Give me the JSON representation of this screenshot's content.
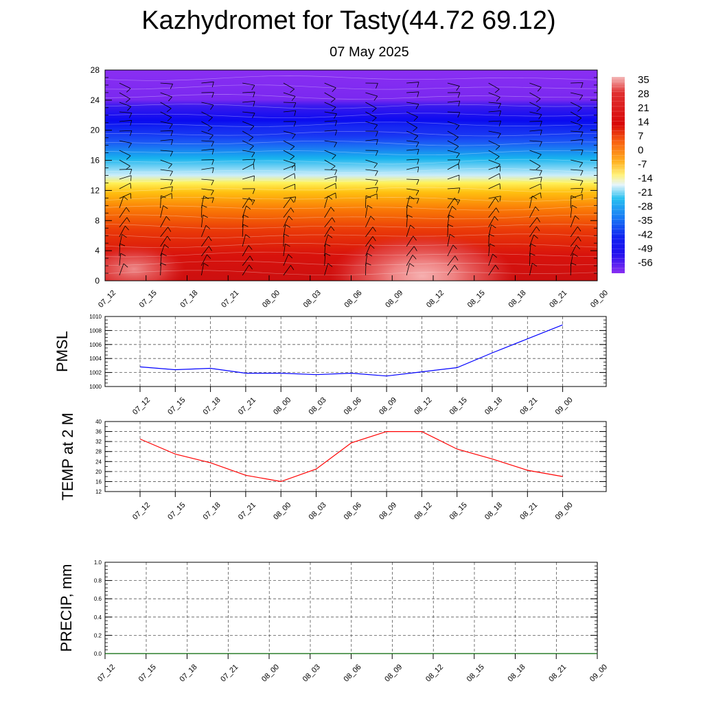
{
  "title": "Kazhydromet for Tasty(44.72 69.12)",
  "subtitle": "07 May 2025",
  "time_labels": [
    "07_12",
    "07_15",
    "07_18",
    "07_21",
    "08_00",
    "08_03",
    "08_06",
    "08_09",
    "08_12",
    "08_15",
    "08_18",
    "08_21",
    "09_00"
  ],
  "colorbar_labels": [
    "35",
    "28",
    "21",
    "14",
    "7",
    "0",
    "-7",
    "-14",
    "-21",
    "-28",
    "-35",
    "-42",
    "-49",
    "-56"
  ],
  "colors": {
    "pmsl_line": "#0000ff",
    "temp_line": "#ff0000",
    "precip_line": "#006400",
    "grid": "#555555"
  },
  "chart_data": [
    {
      "type": "heatmap",
      "title": "Kazhydromet for Tasty(44.72 69.12)",
      "subtitle": "07 May 2025",
      "x": [
        "07_12",
        "07_15",
        "07_18",
        "07_21",
        "08_00",
        "08_03",
        "08_06",
        "08_09",
        "08_12",
        "08_15",
        "08_18",
        "08_21",
        "09_00"
      ],
      "ylim": [
        0,
        28
      ],
      "y_ticks": [
        0,
        4,
        8,
        12,
        16,
        20,
        24,
        28
      ],
      "colorbar": [
        35,
        28,
        21,
        14,
        7,
        0,
        -7,
        -14,
        -21,
        -28,
        -35,
        -42,
        -49,
        -56
      ],
      "overlay": "wind barbs"
    },
    {
      "type": "line",
      "ylabel": "PMSL",
      "ylim": [
        1000,
        1010
      ],
      "y_ticks": [
        1000,
        1002,
        1004,
        1006,
        1008,
        1010
      ],
      "x": [
        "07_12",
        "07_15",
        "07_18",
        "07_21",
        "08_00",
        "08_03",
        "08_06",
        "08_09",
        "08_12",
        "08_15",
        "08_18",
        "08_21",
        "09_00"
      ],
      "values": [
        1002.8,
        1002.4,
        1002.6,
        1001.9,
        1001.9,
        1001.7,
        1001.9,
        1001.5,
        1002.1,
        1002.7,
        1004.8,
        1006.8,
        1008.8
      ],
      "grid": true
    },
    {
      "type": "line",
      "ylabel": "TEMP at 2 M",
      "ylim": [
        12,
        40
      ],
      "y_ticks": [
        12,
        16,
        20,
        24,
        28,
        32,
        36,
        40
      ],
      "x": [
        "07_12",
        "07_15",
        "07_18",
        "07_21",
        "08_00",
        "08_03",
        "08_06",
        "08_09",
        "08_12",
        "08_15",
        "08_18",
        "08_21",
        "09_00"
      ],
      "values": [
        33,
        27,
        23.5,
        18.5,
        16,
        21,
        31.5,
        36,
        36,
        29,
        25,
        20.5,
        18
      ],
      "grid": true
    },
    {
      "type": "line",
      "ylabel": "PRECIP, mm",
      "ylim": [
        0,
        1
      ],
      "y_ticks": [
        "0.0",
        "0.2",
        "0.4",
        "0.6",
        "0.8",
        "1.0"
      ],
      "x": [
        "07_12",
        "07_15",
        "07_18",
        "07_21",
        "08_00",
        "08_03",
        "08_06",
        "08_09",
        "08_12",
        "08_15",
        "08_18",
        "08_21",
        "09_00"
      ],
      "values": [
        0,
        0,
        0,
        0,
        0,
        0,
        0,
        0,
        0,
        0,
        0,
        0,
        0
      ],
      "grid": true
    }
  ]
}
